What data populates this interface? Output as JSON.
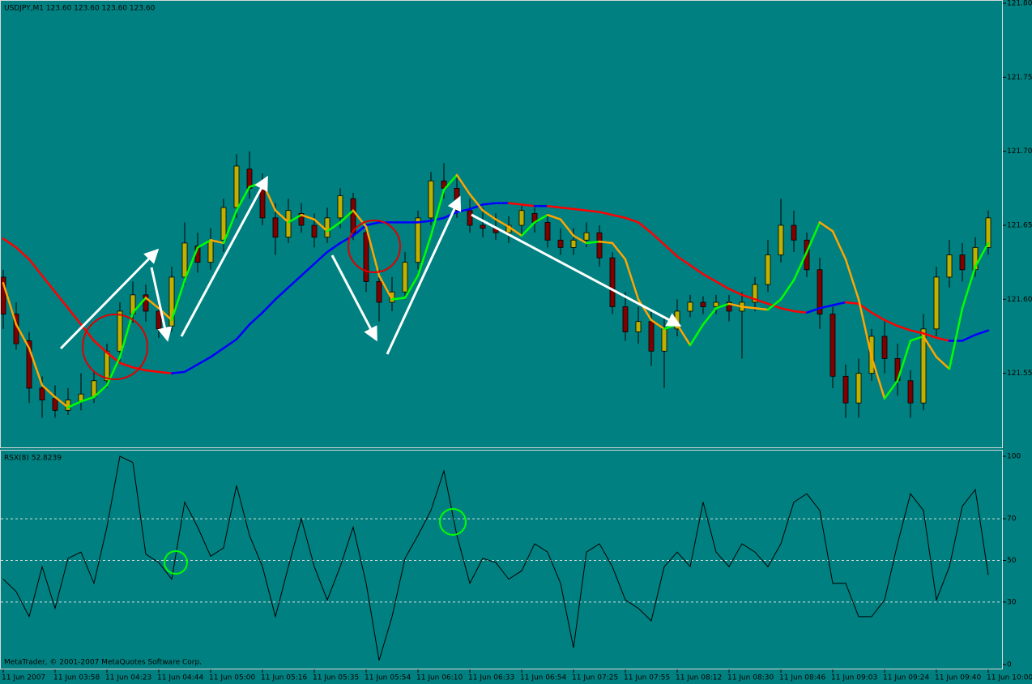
{
  "chart_data": [
    {
      "type": "ohlc",
      "title": "USDJPY,M1  123.60 123.60 123.60 123.60",
      "categories": [
        "11 Jun 2007",
        null,
        null,
        null,
        "11 Jun 03:58",
        null,
        null,
        null,
        "11 Jun 04:23",
        null,
        null,
        null,
        "11 Jun 04:44",
        null,
        null,
        null,
        "11 Jun 05:00",
        null,
        null,
        null,
        "11 Jun 05:16",
        null,
        null,
        null,
        "11 Jun 05:35",
        null,
        null,
        null,
        "11 Jun 05:54",
        null,
        null,
        null,
        "11 Jun 06:10",
        null,
        null,
        null,
        "11 Jun 06:33",
        null,
        null,
        null,
        "11 Jun 06:54",
        null,
        null,
        null,
        "11 Jun 07:25",
        null,
        null,
        null,
        "11 Jun 07:55",
        null,
        null,
        null,
        "11 Jun 08:12",
        null,
        null,
        null,
        "11 Jun 08:30",
        null,
        null,
        null,
        "11 Jun 08:46",
        null,
        null,
        null,
        "11 Jun 09:03",
        null,
        null,
        null,
        "11 Jun 09:24",
        null,
        null,
        null,
        "11 Jun 09:40",
        null,
        null,
        null,
        "11 Jun 10:00"
      ],
      "ylim": [
        121.5,
        121.8
      ],
      "yticks": [
        121.55,
        {
          "value": 121.6,
          "label": "121.60"
        },
        121.65,
        {
          "value": 121.7,
          "label": "121.70"
        },
        121.75,
        {
          "value": 121.8,
          "label": "121.80"
        }
      ],
      "up_color": "#c0b000",
      "down_color": "#800000",
      "open": [
        121.615,
        121.59,
        121.572,
        121.54,
        121.533,
        121.525,
        121.531,
        121.534,
        121.545,
        121.565,
        121.59,
        121.603,
        121.592,
        121.582,
        121.615,
        121.636,
        121.625,
        121.64,
        121.662,
        121.688,
        121.675,
        121.655,
        121.642,
        121.658,
        121.65,
        121.642,
        121.655,
        121.668,
        121.645,
        121.612,
        121.598,
        121.605,
        121.625,
        121.655,
        121.68,
        121.675,
        121.66,
        121.65,
        121.648,
        121.645,
        121.65,
        121.658,
        121.652,
        121.64,
        121.635,
        121.64,
        121.645,
        121.628,
        121.595,
        121.578,
        121.585,
        121.565,
        121.58,
        121.592,
        121.598,
        121.595,
        121.598,
        121.592,
        121.598,
        121.61,
        121.63,
        121.65,
        121.64,
        121.62,
        121.59,
        121.548,
        121.53,
        121.55,
        121.575,
        121.56,
        121.545,
        121.53,
        121.58,
        121.615,
        121.63,
        121.62,
        121.635
      ],
      "high": [
        121.62,
        121.598,
        121.578,
        121.548,
        121.542,
        121.54,
        121.55,
        121.552,
        121.57,
        121.598,
        121.612,
        121.61,
        121.6,
        121.622,
        121.652,
        121.645,
        121.648,
        121.668,
        121.698,
        121.7,
        121.685,
        121.665,
        121.668,
        121.665,
        121.658,
        121.662,
        121.675,
        121.672,
        121.65,
        121.62,
        121.615,
        121.632,
        121.66,
        121.686,
        121.692,
        121.682,
        121.668,
        121.662,
        121.658,
        121.656,
        121.664,
        121.662,
        121.658,
        121.648,
        121.648,
        121.652,
        121.65,
        121.632,
        121.605,
        121.595,
        121.592,
        121.588,
        121.6,
        121.603,
        121.602,
        121.603,
        121.603,
        121.605,
        121.615,
        121.64,
        121.668,
        121.66,
        121.645,
        121.628,
        121.595,
        121.556,
        121.56,
        121.58,
        121.585,
        121.57,
        121.552,
        121.59,
        121.622,
        121.64,
        121.638,
        121.642,
        121.66
      ],
      "low": [
        121.58,
        121.566,
        121.53,
        121.52,
        121.52,
        121.522,
        121.525,
        121.53,
        121.54,
        121.558,
        121.584,
        121.585,
        121.574,
        121.578,
        121.61,
        121.618,
        121.62,
        121.632,
        121.655,
        121.668,
        121.65,
        121.63,
        121.638,
        121.645,
        121.635,
        121.638,
        121.648,
        121.64,
        121.605,
        121.585,
        121.592,
        121.6,
        121.62,
        121.65,
        121.668,
        121.655,
        121.645,
        121.642,
        121.64,
        121.638,
        121.644,
        121.645,
        121.635,
        121.63,
        121.63,
        121.635,
        121.622,
        121.59,
        121.572,
        121.57,
        121.555,
        121.54,
        121.575,
        121.588,
        121.59,
        121.59,
        121.585,
        121.56,
        121.592,
        121.605,
        121.625,
        121.632,
        121.615,
        121.58,
        121.54,
        121.52,
        121.52,
        121.545,
        121.55,
        121.535,
        121.52,
        121.525,
        121.575,
        121.608,
        121.612,
        121.615,
        121.63
      ],
      "close": [
        121.59,
        121.57,
        121.54,
        121.532,
        121.525,
        121.532,
        121.536,
        121.545,
        121.565,
        121.592,
        121.603,
        121.592,
        121.58,
        121.615,
        121.638,
        121.625,
        121.64,
        121.662,
        121.69,
        121.675,
        121.655,
        121.642,
        121.66,
        121.65,
        121.642,
        121.655,
        121.67,
        121.645,
        121.612,
        121.598,
        121.605,
        121.625,
        121.655,
        121.68,
        121.675,
        121.66,
        121.65,
        121.648,
        121.645,
        121.65,
        121.66,
        121.652,
        121.64,
        121.635,
        121.64,
        121.645,
        121.628,
        121.595,
        121.578,
        121.585,
        121.565,
        121.58,
        121.592,
        121.598,
        121.595,
        121.598,
        121.592,
        121.598,
        121.61,
        121.63,
        121.65,
        121.64,
        121.62,
        121.59,
        121.548,
        121.53,
        121.55,
        121.575,
        121.56,
        121.545,
        121.53,
        121.58,
        121.615,
        121.63,
        121.62,
        121.635,
        121.655
      ],
      "lines": [
        {
          "up_color": "#0000ff",
          "down_color": "#ff0000",
          "values": [
            121.641,
            121.635,
            121.627,
            121.616,
            121.605,
            121.594,
            121.583,
            121.572,
            121.564,
            121.557,
            121.554,
            121.552,
            121.551,
            121.55,
            121.551,
            121.556,
            121.561,
            121.567,
            121.573,
            121.583,
            121.591,
            121.6,
            121.608,
            121.616,
            121.624,
            121.632,
            121.638,
            121.643,
            121.65,
            121.652,
            121.652,
            121.652,
            121.652,
            121.653,
            121.655,
            121.659,
            121.661,
            121.664,
            121.665,
            121.665,
            121.664,
            121.663,
            121.663,
            121.662,
            121.661,
            121.66,
            121.659,
            121.657,
            121.655,
            121.652,
            121.645,
            121.637,
            121.629,
            121.623,
            121.617,
            121.612,
            121.607,
            121.603,
            121.6,
            121.597,
            121.594,
            121.592,
            121.591,
            121.594,
            121.596,
            121.598,
            121.597,
            121.591,
            121.586,
            121.582,
            121.579,
            121.577,
            121.574,
            121.572,
            121.572,
            121.576,
            121.579
          ]
        },
        {
          "up_color": "#00ff00",
          "down_color": "#ffa500",
          "values": [
            121.611,
            121.583,
            121.567,
            121.542,
            121.534,
            121.527,
            121.531,
            121.534,
            121.542,
            121.561,
            121.591,
            121.601,
            121.594,
            121.586,
            121.613,
            121.635,
            121.64,
            121.638,
            121.66,
            121.676,
            121.679,
            121.66,
            121.652,
            121.657,
            121.654,
            121.646,
            121.652,
            121.66,
            121.649,
            121.616,
            121.6,
            121.601,
            121.616,
            121.643,
            121.674,
            121.684,
            121.671,
            121.66,
            121.654,
            121.649,
            121.643,
            121.652,
            121.657,
            121.654,
            121.643,
            121.638,
            121.639,
            121.638,
            121.627,
            121.6,
            121.586,
            121.58,
            121.583,
            121.569,
            121.583,
            121.594,
            121.597,
            121.595,
            121.594,
            121.593,
            121.6,
            121.613,
            121.632,
            121.652,
            121.646,
            121.627,
            121.6,
            121.561,
            121.533,
            121.545,
            121.572,
            121.575,
            121.561,
            121.553,
            121.594,
            121.622,
            121.638
          ]
        }
      ]
    },
    {
      "type": "line",
      "title": "RSX(8) 52.8239",
      "footer": "MetaTrader, © 2001-2007 MetaQuotes Software Corp.",
      "ylim": [
        0,
        100
      ],
      "yticks": [
        0,
        30,
        50,
        70,
        100
      ],
      "series": [
        {
          "color": "#000000",
          "values": [
            41,
            35,
            23,
            47,
            27,
            51,
            54,
            39,
            66,
            100,
            97,
            53,
            49,
            41,
            78,
            66,
            52,
            56,
            86,
            62,
            47,
            23,
            47,
            70,
            47,
            31,
            47,
            66,
            39,
            2,
            23,
            51,
            62,
            74,
            93,
            62,
            39,
            51,
            49,
            41,
            45,
            58,
            54,
            39,
            8,
            54,
            58,
            47,
            31,
            27,
            21,
            47,
            54,
            47,
            78,
            54,
            47,
            58,
            54,
            47,
            58,
            78,
            82,
            74,
            39,
            39,
            23,
            23,
            31,
            58,
            82,
            74,
            31,
            47,
            76,
            84,
            43
          ]
        }
      ]
    }
  ]
}
